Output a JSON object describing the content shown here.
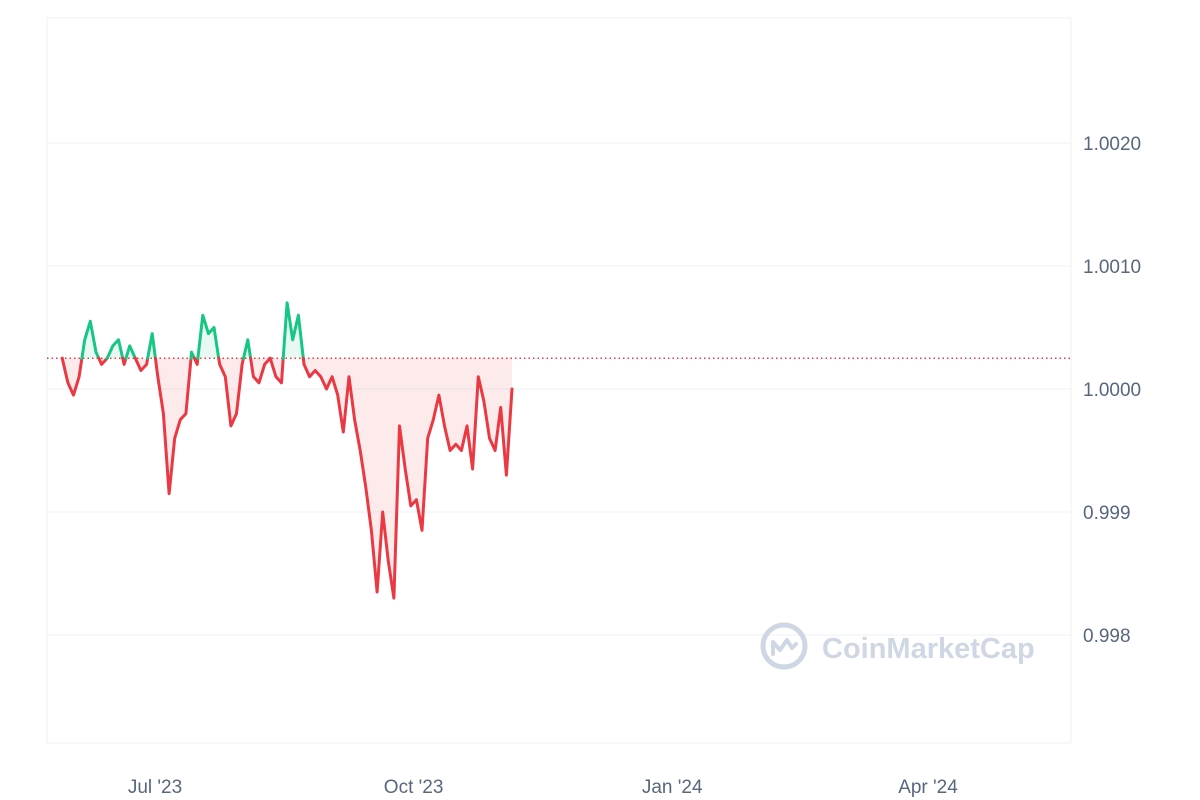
{
  "watermark": {
    "text": "CoinMarketCap",
    "icon": "coinmarketcap-logo-icon"
  },
  "colors": {
    "up": "#16c784",
    "down": "#ea3943",
    "up_fill": "#16c784",
    "down_fill": "#ea3943",
    "baseline": "#ea3943",
    "grid": "#eff2f5",
    "volume": "#e6e9ee"
  },
  "chart_data": {
    "type": "line",
    "baseline": 1.00025,
    "y_ticks": [
      {
        "label": "0.998",
        "value": 0.998
      },
      {
        "label": "0.999",
        "value": 0.999
      },
      {
        "label": "1.0000",
        "value": 1.0
      },
      {
        "label": "1.0010",
        "value": 1.001
      },
      {
        "label": "1.0020",
        "value": 1.002
      }
    ],
    "x_ticks": [
      {
        "label": "Jul '23",
        "date": "2023-07-01"
      },
      {
        "label": "Oct '23",
        "date": "2023-10-01"
      },
      {
        "label": "Jan '24",
        "date": "2024-01-01"
      },
      {
        "label": "Apr '24",
        "date": "2024-04-01"
      }
    ],
    "series": [
      {
        "values": [
          [
            "2023-05-29",
            1.00025
          ],
          [
            "2023-05-31",
            1.00005
          ],
          [
            "2023-06-02",
            0.99995
          ],
          [
            "2023-06-04",
            1.0001
          ],
          [
            "2023-06-06",
            1.0004
          ],
          [
            "2023-06-08",
            1.00055
          ],
          [
            "2023-06-10",
            1.0003
          ],
          [
            "2023-06-12",
            1.0002
          ],
          [
            "2023-06-14",
            1.00025
          ],
          [
            "2023-06-16",
            1.00035
          ],
          [
            "2023-06-18",
            1.0004
          ],
          [
            "2023-06-20",
            1.0002
          ],
          [
            "2023-06-22",
            1.00035
          ],
          [
            "2023-06-24",
            1.00025
          ],
          [
            "2023-06-26",
            1.00015
          ],
          [
            "2023-06-28",
            1.0002
          ],
          [
            "2023-06-30",
            1.00045
          ],
          [
            "2023-07-02",
            1.0001
          ],
          [
            "2023-07-04",
            0.9998
          ],
          [
            "2023-07-06",
            0.99915
          ],
          [
            "2023-07-08",
            0.9996
          ],
          [
            "2023-07-10",
            0.99975
          ],
          [
            "2023-07-12",
            0.9998
          ],
          [
            "2023-07-14",
            1.0003
          ],
          [
            "2023-07-16",
            1.0002
          ],
          [
            "2023-07-18",
            1.0006
          ],
          [
            "2023-07-20",
            1.00045
          ],
          [
            "2023-07-22",
            1.0005
          ],
          [
            "2023-07-24",
            1.0002
          ],
          [
            "2023-07-26",
            1.0001
          ],
          [
            "2023-07-28",
            0.9997
          ],
          [
            "2023-07-30",
            0.9998
          ],
          [
            "2023-08-01",
            1.0002
          ],
          [
            "2023-08-03",
            1.0004
          ],
          [
            "2023-08-05",
            1.0001
          ],
          [
            "2023-08-07",
            1.00005
          ],
          [
            "2023-08-09",
            1.0002
          ],
          [
            "2023-08-11",
            1.00025
          ],
          [
            "2023-08-13",
            1.0001
          ],
          [
            "2023-08-15",
            1.00005
          ],
          [
            "2023-08-17",
            1.0007
          ],
          [
            "2023-08-19",
            1.0004
          ],
          [
            "2023-08-21",
            1.0006
          ],
          [
            "2023-08-23",
            1.0002
          ],
          [
            "2023-08-25",
            1.0001
          ],
          [
            "2023-08-27",
            1.00015
          ],
          [
            "2023-08-29",
            1.0001
          ],
          [
            "2023-08-31",
            1.0
          ],
          [
            "2023-09-02",
            1.0001
          ],
          [
            "2023-09-04",
            0.99995
          ],
          [
            "2023-09-06",
            0.99965
          ],
          [
            "2023-09-08",
            1.0001
          ],
          [
            "2023-09-10",
            0.99975
          ],
          [
            "2023-09-12",
            0.9995
          ],
          [
            "2023-09-14",
            0.9992
          ],
          [
            "2023-09-16",
            0.99885
          ],
          [
            "2023-09-18",
            0.99835
          ],
          [
            "2023-09-20",
            0.999
          ],
          [
            "2023-09-22",
            0.9986
          ],
          [
            "2023-09-24",
            0.9983
          ],
          [
            "2023-09-26",
            0.9997
          ],
          [
            "2023-09-28",
            0.99935
          ],
          [
            "2023-09-30",
            0.99905
          ],
          [
            "2023-10-02",
            0.9991
          ],
          [
            "2023-10-04",
            0.99885
          ],
          [
            "2023-10-06",
            0.9996
          ],
          [
            "2023-10-08",
            0.99975
          ],
          [
            "2023-10-10",
            0.99995
          ],
          [
            "2023-10-12",
            0.9997
          ],
          [
            "2023-10-14",
            0.9995
          ],
          [
            "2023-10-16",
            0.99955
          ],
          [
            "2023-10-18",
            0.9995
          ],
          [
            "2023-10-20",
            0.9997
          ],
          [
            "2023-10-22",
            0.99935
          ],
          [
            "2023-10-24",
            1.0001
          ],
          [
            "2023-10-26",
            0.9999
          ],
          [
            "2023-10-28",
            0.9996
          ],
          [
            "2023-10-30",
            0.9995
          ],
          [
            "2023-11-01",
            0.99985
          ],
          [
            "2023-11-03",
            0.9993
          ],
          [
            "2023-11-05",
            1.0
          ]
        ]
      }
    ],
    "volume": []
  }
}
